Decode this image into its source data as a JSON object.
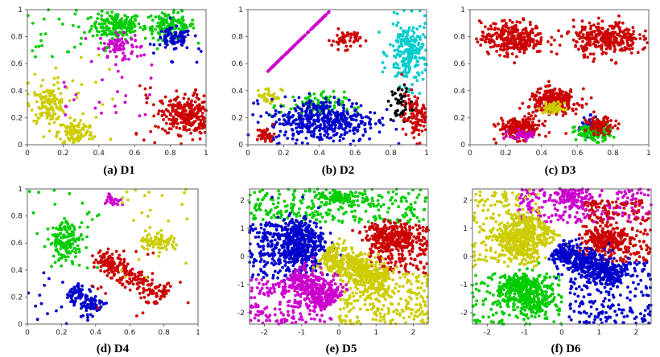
{
  "figure": {
    "panels": [
      {
        "letter": "(a)",
        "name": "D1"
      },
      {
        "letter": "(b)",
        "name": "D2"
      },
      {
        "letter": "(c)",
        "name": "D3"
      },
      {
        "letter": "(d)",
        "name": "D4"
      },
      {
        "letter": "(e)",
        "name": "D5"
      },
      {
        "letter": "(f)",
        "name": "D6"
      }
    ],
    "colors": {
      "red": "#cc0000",
      "green": "#00cc00",
      "blue": "#0000cc",
      "magenta": "#cc00cc",
      "yellow": "#cccc00",
      "cyan": "#00cccc",
      "black": "#000000"
    }
  },
  "chart_data": [
    {
      "type": "scatter",
      "panel": "(a) D1",
      "xlim": [
        0,
        1
      ],
      "ylim": [
        0,
        1
      ],
      "xticks": [
        "0",
        "0.2",
        "0.4",
        "0.6",
        "0.8",
        "1"
      ],
      "yticks": [
        "0",
        "0.2",
        "0.4",
        "0.6",
        "0.8",
        "1"
      ],
      "clusters": [
        {
          "color": "green",
          "shape": "ellipse",
          "center": [
            0.5,
            0.88
          ],
          "spread": [
            0.07,
            0.05
          ],
          "count": 170
        },
        {
          "color": "magenta",
          "shape": "ellipse",
          "center": [
            0.5,
            0.74
          ],
          "spread": [
            0.05,
            0.04
          ],
          "count": 70
        },
        {
          "color": "green",
          "shape": "ellipse",
          "center": [
            0.8,
            0.88
          ],
          "spread": [
            0.07,
            0.05
          ],
          "count": 140
        },
        {
          "color": "blue",
          "shape": "ellipse",
          "center": [
            0.82,
            0.78
          ],
          "spread": [
            0.05,
            0.04
          ],
          "count": 80
        },
        {
          "color": "yellow",
          "shape": "ellipse",
          "center": [
            0.12,
            0.3
          ],
          "spread": [
            0.05,
            0.06
          ],
          "count": 130
        },
        {
          "color": "yellow",
          "shape": "ellipse",
          "center": [
            0.27,
            0.09
          ],
          "spread": [
            0.05,
            0.05
          ],
          "count": 110
        },
        {
          "color": "red",
          "shape": "ellipse",
          "center": [
            0.89,
            0.22
          ],
          "spread": [
            0.07,
            0.07
          ],
          "count": 260
        },
        {
          "color": "green",
          "shape": "uniform",
          "box": [
            0,
            0.65,
            0.45,
            1
          ],
          "count": 30
        },
        {
          "color": "magenta",
          "shape": "uniform",
          "box": [
            0.2,
            0.2,
            0.7,
            0.75
          ],
          "count": 35
        },
        {
          "color": "yellow",
          "shape": "uniform",
          "box": [
            0,
            0,
            0.5,
            0.7
          ],
          "count": 25
        },
        {
          "color": "red",
          "shape": "uniform",
          "box": [
            0.6,
            0,
            1,
            0.45
          ],
          "count": 30
        },
        {
          "color": "blue",
          "shape": "uniform",
          "box": [
            0.75,
            0.6,
            1,
            0.95
          ],
          "count": 8
        }
      ]
    },
    {
      "type": "scatter",
      "panel": "(b) D2",
      "xlim": [
        0,
        1
      ],
      "ylim": [
        0,
        1
      ],
      "xticks": [
        "0",
        "0.2",
        "0.4",
        "0.6",
        "0.8",
        "1"
      ],
      "yticks": [
        "0",
        "0.2",
        "0.4",
        "0.6",
        "0.8",
        "1"
      ],
      "clusters": [
        {
          "color": "magenta",
          "shape": "crescent",
          "center": [
            0.22,
            0.76
          ],
          "spread": [
            0.14,
            0.18
          ],
          "count": 230
        },
        {
          "color": "red",
          "shape": "ellipse",
          "center": [
            0.55,
            0.78
          ],
          "spread": [
            0.04,
            0.035
          ],
          "count": 60
        },
        {
          "color": "cyan",
          "shape": "ellipse",
          "center": [
            0.9,
            0.68
          ],
          "spread": [
            0.055,
            0.12
          ],
          "count": 230
        },
        {
          "color": "yellow",
          "shape": "ellipse",
          "center": [
            0.12,
            0.36
          ],
          "spread": [
            0.035,
            0.035
          ],
          "count": 40
        },
        {
          "color": "green",
          "shape": "ellipse",
          "center": [
            0.36,
            0.29
          ],
          "spread": [
            0.09,
            0.05
          ],
          "count": 90
        },
        {
          "color": "blue",
          "shape": "ellipse",
          "center": [
            0.42,
            0.18
          ],
          "spread": [
            0.15,
            0.08
          ],
          "count": 440
        },
        {
          "color": "red",
          "shape": "ellipse",
          "center": [
            0.1,
            0.07
          ],
          "spread": [
            0.025,
            0.03
          ],
          "count": 40
        },
        {
          "color": "black",
          "shape": "ellipse",
          "center": [
            0.86,
            0.3
          ],
          "spread": [
            0.03,
            0.07
          ],
          "count": 55
        },
        {
          "color": "red",
          "shape": "ellipse",
          "center": [
            0.94,
            0.2
          ],
          "spread": [
            0.04,
            0.09
          ],
          "count": 110
        }
      ]
    },
    {
      "type": "scatter",
      "panel": "(c) D3",
      "xlim": [
        0,
        1
      ],
      "ylim": [
        0,
        1
      ],
      "xticks": [
        "0",
        "0.2",
        "0.4",
        "0.6",
        "0.8",
        "1"
      ],
      "yticks": [
        "0",
        "0.2",
        "0.4",
        "0.6",
        "0.8",
        "1"
      ],
      "clusters": [
        {
          "color": "red",
          "shape": "ellipse",
          "center": [
            0.24,
            0.79
          ],
          "spread": [
            0.09,
            0.06
          ],
          "count": 300
        },
        {
          "color": "red",
          "shape": "ellipse",
          "center": [
            0.76,
            0.79
          ],
          "spread": [
            0.09,
            0.06
          ],
          "count": 300
        },
        {
          "color": "red",
          "shape": "ellipse",
          "center": [
            0.47,
            0.32
          ],
          "spread": [
            0.07,
            0.045
          ],
          "count": 260
        },
        {
          "color": "yellow",
          "shape": "ellipse",
          "center": [
            0.47,
            0.27
          ],
          "spread": [
            0.03,
            0.02
          ],
          "count": 60
        },
        {
          "color": "red",
          "shape": "ellipse",
          "center": [
            0.28,
            0.12
          ],
          "spread": [
            0.06,
            0.04
          ],
          "count": 200
        },
        {
          "color": "magenta",
          "shape": "ellipse",
          "center": [
            0.3,
            0.07
          ],
          "spread": [
            0.04,
            0.02
          ],
          "count": 50
        },
        {
          "color": "blue",
          "shape": "ellipse",
          "center": [
            0.67,
            0.14
          ],
          "spread": [
            0.03,
            0.03
          ],
          "count": 50
        },
        {
          "color": "green",
          "shape": "ellipse",
          "center": [
            0.69,
            0.09
          ],
          "spread": [
            0.05,
            0.03
          ],
          "count": 130
        },
        {
          "color": "red",
          "shape": "ellipse",
          "center": [
            0.73,
            0.14
          ],
          "spread": [
            0.04,
            0.03
          ],
          "count": 80
        },
        {
          "color": "red",
          "shape": "uniform",
          "box": [
            0.05,
            0.6,
            0.98,
            0.9
          ],
          "count": 20
        }
      ]
    },
    {
      "type": "scatter",
      "panel": "(d) D4",
      "xlim": [
        0,
        1
      ],
      "ylim": [
        0,
        1
      ],
      "xticks": [
        "0",
        "0.2",
        "0.4",
        "0.6",
        "0.8",
        "1"
      ],
      "yticks": [
        "0",
        "0.2",
        "0.4",
        "0.6",
        "0.8",
        "1"
      ],
      "clusters": [
        {
          "color": "magenta",
          "shape": "ellipse",
          "center": [
            0.5,
            0.92
          ],
          "spread": [
            0.025,
            0.025
          ],
          "count": 25
        },
        {
          "color": "green",
          "shape": "ellipse",
          "center": [
            0.23,
            0.62
          ],
          "spread": [
            0.05,
            0.07
          ],
          "count": 140
        },
        {
          "color": "yellow",
          "shape": "ellipse",
          "center": [
            0.76,
            0.62
          ],
          "spread": [
            0.05,
            0.04
          ],
          "count": 80
        },
        {
          "color": "red",
          "shape": "line",
          "from": [
            0.42,
            0.5
          ],
          "to": [
            0.8,
            0.2
          ],
          "width": 0.04,
          "count": 220
        },
        {
          "color": "blue",
          "shape": "line",
          "from": [
            0.26,
            0.26
          ],
          "to": [
            0.42,
            0.1
          ],
          "width": 0.035,
          "count": 120
        },
        {
          "color": "yellow",
          "shape": "uniform",
          "box": [
            0.5,
            0.3,
            1,
            1
          ],
          "count": 25
        },
        {
          "color": "green",
          "shape": "uniform",
          "box": [
            0,
            0.4,
            0.45,
            1
          ],
          "count": 25
        },
        {
          "color": "red",
          "shape": "uniform",
          "box": [
            0.35,
            0.05,
            0.95,
            0.55
          ],
          "count": 25
        },
        {
          "color": "blue",
          "shape": "uniform",
          "box": [
            0,
            0,
            0.4,
            0.4
          ],
          "count": 20
        }
      ]
    },
    {
      "type": "scatter",
      "panel": "(e) D5",
      "xlim": [
        -2.4,
        2.4
      ],
      "ylim": [
        -2.4,
        2.4
      ],
      "xticks": [
        "-2",
        "-1",
        "0",
        "1",
        "2"
      ],
      "yticks": [
        "-2",
        "-1",
        "0",
        "1",
        "2"
      ],
      "clusters": [
        {
          "color": "green",
          "shape": "region",
          "box": [
            -2.4,
            1.2,
            2.4,
            2.4
          ],
          "count": 260
        },
        {
          "color": "green",
          "shape": "ellipse",
          "center": [
            0,
            2.1
          ],
          "spread": [
            0.3,
            0.15
          ],
          "count": 90
        },
        {
          "color": "blue",
          "shape": "region",
          "box": [
            -2.4,
            -0.8,
            -0.6,
            1.2
          ],
          "count": 260
        },
        {
          "color": "blue",
          "shape": "ellipse",
          "center": [
            -1.1,
            0.5
          ],
          "spread": [
            0.35,
            0.45
          ],
          "count": 380
        },
        {
          "color": "red",
          "shape": "region",
          "box": [
            0.8,
            -0.6,
            2.4,
            1.2
          ],
          "count": 180
        },
        {
          "color": "red",
          "shape": "ellipse",
          "center": [
            1.4,
            0.7
          ],
          "spread": [
            0.35,
            0.25
          ],
          "count": 240
        },
        {
          "color": "yellow",
          "shape": "line",
          "from": [
            -0.4,
            0.1
          ],
          "to": [
            1.3,
            -0.9
          ],
          "width": 0.25,
          "count": 460
        },
        {
          "color": "yellow",
          "shape": "region",
          "box": [
            0,
            -2.4,
            2.4,
            -0.6
          ],
          "count": 260
        },
        {
          "color": "magenta",
          "shape": "line",
          "from": [
            -1.3,
            -0.6
          ],
          "to": [
            -0.2,
            -1.7
          ],
          "width": 0.3,
          "count": 380
        },
        {
          "color": "magenta",
          "shape": "region",
          "box": [
            -2.4,
            -2.4,
            -0.2,
            -0.8
          ],
          "count": 160
        }
      ]
    },
    {
      "type": "scatter",
      "panel": "(f) D6",
      "xlim": [
        -2.4,
        2.4
      ],
      "ylim": [
        -2.4,
        2.4
      ],
      "xticks": [
        "-2",
        "-1",
        "0",
        "1",
        "2"
      ],
      "yticks": [
        "-2",
        "-1",
        "0",
        "1",
        "2"
      ],
      "clusters": [
        {
          "color": "magenta",
          "shape": "region",
          "box": [
            -1.2,
            1.2,
            2.4,
            2.4
          ],
          "count": 220
        },
        {
          "color": "magenta",
          "shape": "ellipse",
          "center": [
            0.3,
            2.1
          ],
          "spread": [
            0.25,
            0.15
          ],
          "count": 90
        },
        {
          "color": "yellow",
          "shape": "line",
          "from": [
            -1.5,
            0.2
          ],
          "to": [
            -0.5,
            1.2
          ],
          "width": 0.35,
          "count": 420
        },
        {
          "color": "yellow",
          "shape": "region",
          "box": [
            -2.4,
            -0.4,
            -0.6,
            2.4
          ],
          "count": 200
        },
        {
          "color": "red",
          "shape": "region",
          "box": [
            0.6,
            -0.2,
            2.4,
            2.0
          ],
          "count": 220
        },
        {
          "color": "red",
          "shape": "ellipse",
          "center": [
            1.2,
            0.6
          ],
          "spread": [
            0.3,
            0.22
          ],
          "count": 200
        },
        {
          "color": "blue",
          "shape": "line",
          "from": [
            -0.2,
            0.2
          ],
          "to": [
            1.6,
            -0.7
          ],
          "width": 0.25,
          "count": 460
        },
        {
          "color": "blue",
          "shape": "region",
          "box": [
            0.2,
            -2.4,
            2.4,
            -0.2
          ],
          "count": 230
        },
        {
          "color": "green",
          "shape": "line",
          "from": [
            -1.5,
            -0.9
          ],
          "to": [
            -0.4,
            -1.8
          ],
          "width": 0.3,
          "count": 380
        },
        {
          "color": "green",
          "shape": "region",
          "box": [
            -2.4,
            -2.4,
            0,
            -0.6
          ],
          "count": 160
        }
      ]
    }
  ]
}
